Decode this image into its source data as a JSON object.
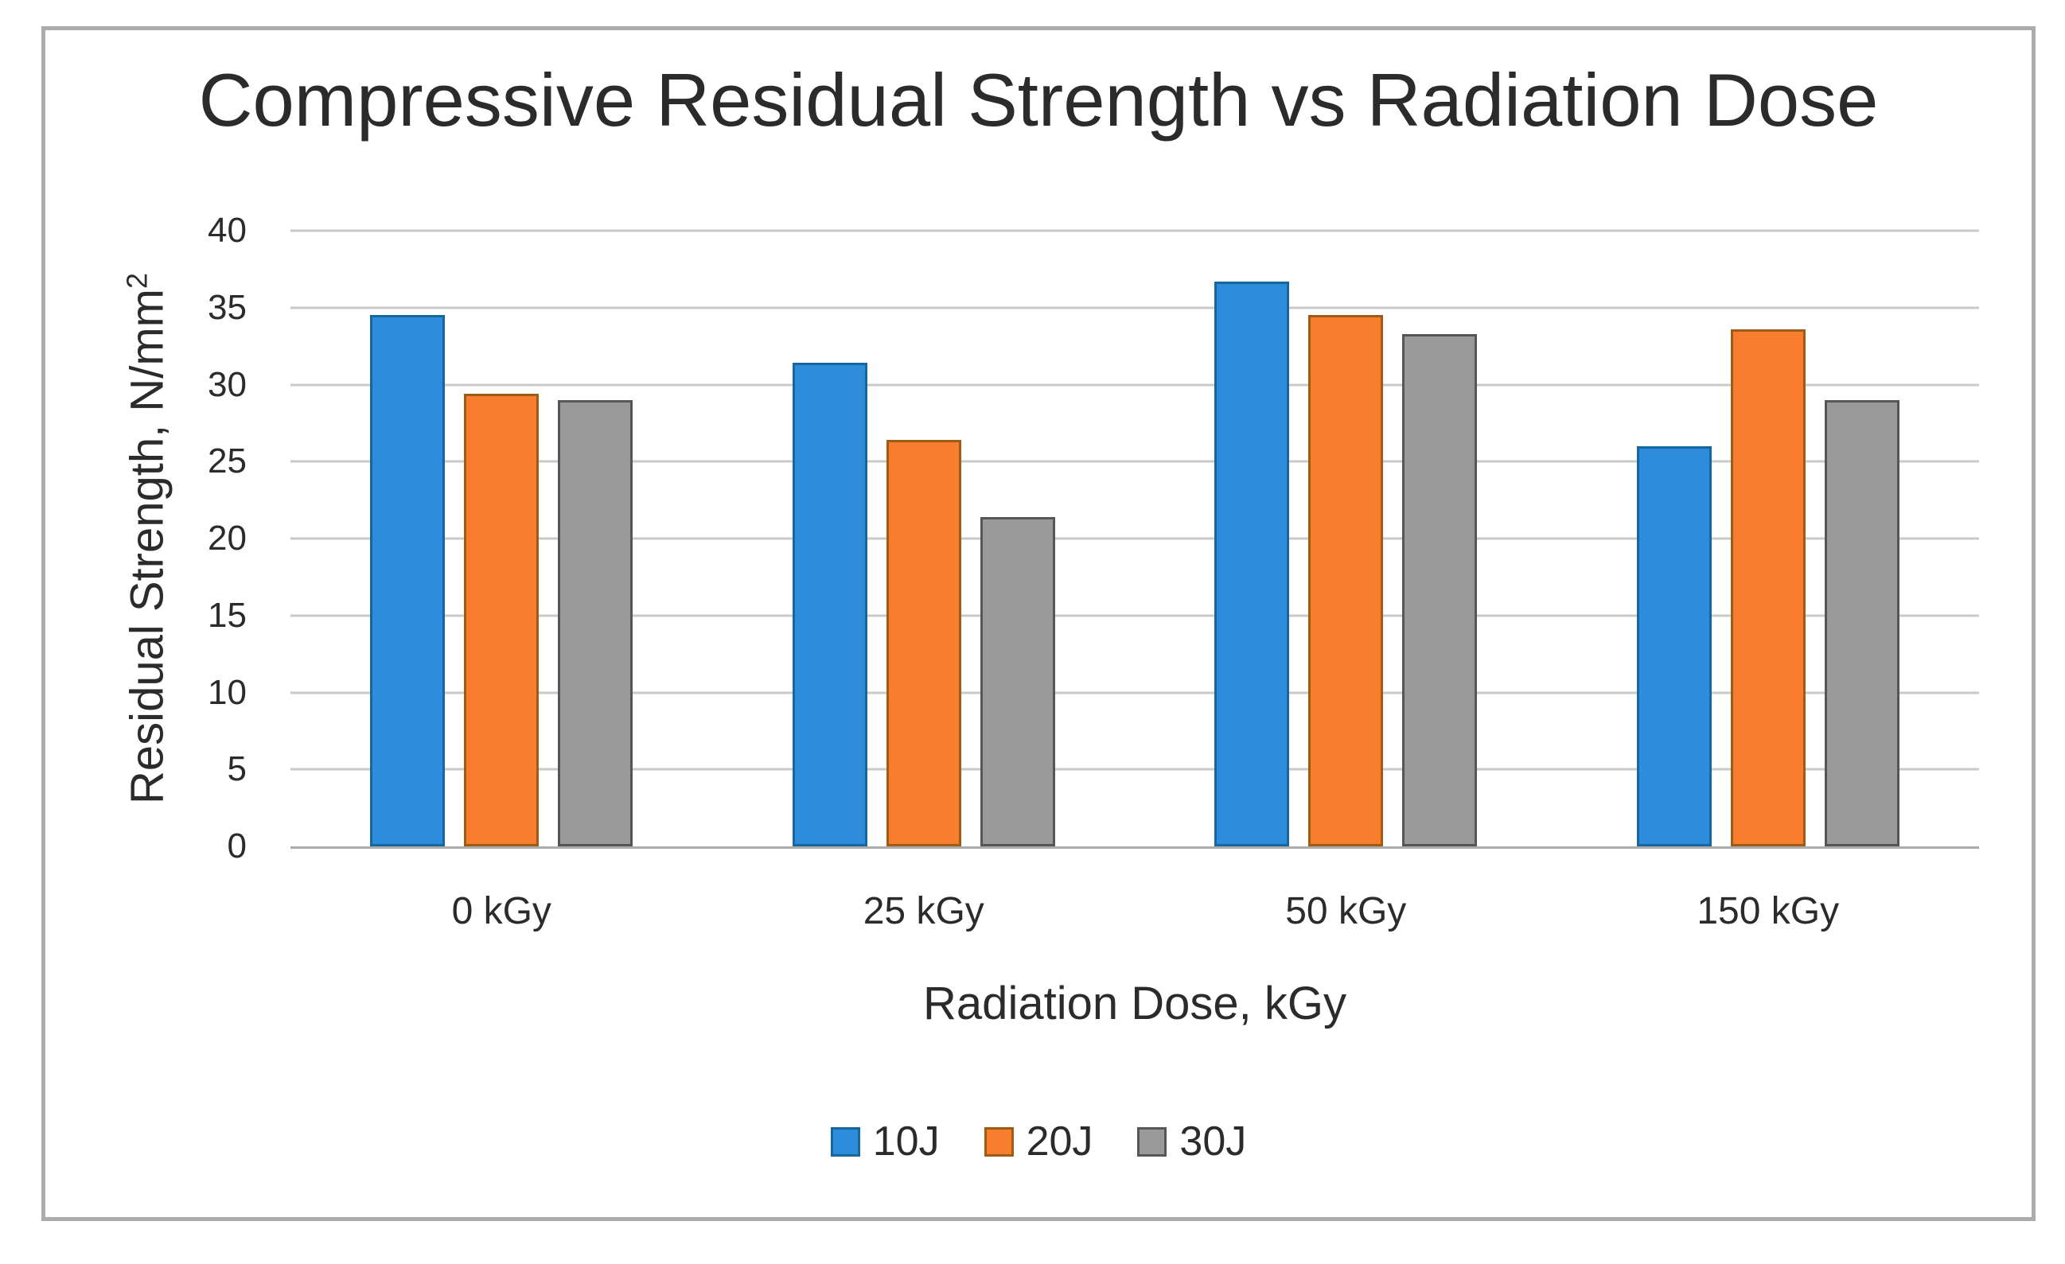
{
  "chart_data": {
    "type": "bar",
    "title": "Compressive Residual Strength vs Radiation Dose",
    "xlabel": "Radiation Dose, kGy",
    "ylabel": "Residual Strength, N/mm²",
    "ylabel_base": "Residual Strength, N/mm",
    "ylabel_sup": "2",
    "categories": [
      "0 kGy",
      "25 kGy",
      "50 kGy",
      "150 kGy"
    ],
    "series": [
      {
        "name": "10J",
        "color": "#2d8cdb",
        "border": "#17679e",
        "values": [
          34.5,
          31.4,
          36.7,
          26.0
        ]
      },
      {
        "name": "20J",
        "color": "#f87d2f",
        "border": "#9e5b13",
        "values": [
          29.4,
          26.4,
          34.5,
          33.6
        ]
      },
      {
        "name": "30J",
        "color": "#9a9a9a",
        "border": "#565656",
        "values": [
          29.0,
          21.4,
          33.3,
          29.0
        ]
      }
    ],
    "ylim": [
      0,
      40
    ],
    "ytick_step": 5,
    "yticks": [
      0,
      5,
      10,
      15,
      20,
      25,
      30,
      35,
      40
    ],
    "grid": true,
    "legend_position": "bottom"
  },
  "palette": {
    "gridline_color": "#c9c9c9",
    "axis_line_color": "#ababab",
    "frame_border_color": "#ababab",
    "text_color": "#2b2b2b",
    "background": "#ffffff"
  }
}
